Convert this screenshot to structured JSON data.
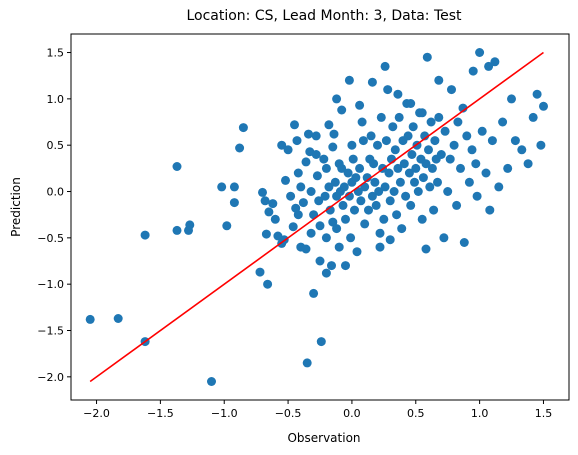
{
  "chart_data": {
    "type": "scatter",
    "title": "Location: CS, Lead Month: 3, Data: Test",
    "xlabel": "Observation",
    "ylabel": "Prediction",
    "xlim": [
      -2.2,
      1.7
    ],
    "ylim": [
      -2.25,
      1.7
    ],
    "xticks": [
      -2.0,
      -1.5,
      -1.0,
      -0.5,
      0.0,
      0.5,
      1.0,
      1.5
    ],
    "yticks": [
      -2.0,
      -1.5,
      -1.0,
      -0.5,
      0.0,
      0.5,
      1.0,
      1.5
    ],
    "xtick_labels": [
      "−2.0",
      "−1.5",
      "−1.0",
      "−0.5",
      "0.0",
      "0.5",
      "1.0",
      "1.5"
    ],
    "ytick_labels": [
      "−2.0",
      "−1.5",
      "−1.0",
      "−0.5",
      "0.0",
      "0.5",
      "1.0",
      "1.5"
    ],
    "grid": false,
    "point_color": "#1f77b4",
    "line_color": "#ff0000",
    "fit_line": [
      [
        -2.05,
        -2.05
      ],
      [
        1.5,
        1.5
      ]
    ],
    "points": [
      [
        -2.05,
        -1.38
      ],
      [
        -1.83,
        -1.37
      ],
      [
        -1.62,
        -1.62
      ],
      [
        -1.62,
        -0.47
      ],
      [
        -1.37,
        0.27
      ],
      [
        -1.37,
        -0.42
      ],
      [
        -1.28,
        -0.42
      ],
      [
        -1.27,
        -0.36
      ],
      [
        -1.1,
        -2.05
      ],
      [
        -1.02,
        0.05
      ],
      [
        -0.98,
        -0.37
      ],
      [
        -0.92,
        0.05
      ],
      [
        -0.92,
        -0.12
      ],
      [
        -0.88,
        0.47
      ],
      [
        -0.85,
        0.69
      ],
      [
        -0.72,
        -0.87
      ],
      [
        -0.7,
        -0.01
      ],
      [
        -0.68,
        -0.1
      ],
      [
        -0.67,
        -0.46
      ],
      [
        -0.66,
        -1.0
      ],
      [
        -0.65,
        -0.22
      ],
      [
        -0.62,
        -0.13
      ],
      [
        -0.58,
        -0.48
      ],
      [
        -0.55,
        0.5
      ],
      [
        -0.55,
        -0.56
      ],
      [
        -0.53,
        -0.52
      ],
      [
        -0.5,
        0.45
      ],
      [
        -0.48,
        -0.05
      ],
      [
        -0.46,
        -0.38
      ],
      [
        -0.45,
        0.72
      ],
      [
        -0.43,
        0.55
      ],
      [
        -0.42,
        0.2
      ],
      [
        -0.42,
        -0.25
      ],
      [
        -0.4,
        0.05
      ],
      [
        -0.4,
        -0.6
      ],
      [
        -0.38,
        -0.12
      ],
      [
        -0.36,
        0.32
      ],
      [
        -0.35,
        -1.85
      ],
      [
        -0.34,
        0.62
      ],
      [
        -0.33,
        0.43
      ],
      [
        -0.32,
        0.0
      ],
      [
        -0.32,
        -0.45
      ],
      [
        -0.3,
        -1.1
      ],
      [
        -0.3,
        -0.25
      ],
      [
        -0.28,
        0.6
      ],
      [
        -0.27,
        0.17
      ],
      [
        -0.26,
        -0.1
      ],
      [
        -0.25,
        -0.37
      ],
      [
        -0.25,
        -0.75
      ],
      [
        -0.24,
        -1.62
      ],
      [
        -0.22,
        0.35
      ],
      [
        -0.21,
        -0.05
      ],
      [
        -0.2,
        0.25
      ],
      [
        -0.2,
        -0.5
      ],
      [
        -0.18,
        0.05
      ],
      [
        -0.17,
        -0.2
      ],
      [
        -0.16,
        -0.8
      ],
      [
        -0.15,
        0.48
      ],
      [
        -0.15,
        -0.33
      ],
      [
        -0.14,
        0.62
      ],
      [
        -0.13,
        0.1
      ],
      [
        -0.12,
        -0.05
      ],
      [
        -0.12,
        -0.4
      ],
      [
        -0.1,
        0.3
      ],
      [
        -0.1,
        -0.6
      ],
      [
        -0.09,
        0.0
      ],
      [
        -0.08,
        0.25
      ],
      [
        -0.07,
        -0.15
      ],
      [
        -0.06,
        0.05
      ],
      [
        -0.05,
        -0.3
      ],
      [
        -0.05,
        -0.8
      ],
      [
        -0.03,
        0.2
      ],
      [
        -0.02,
        -0.05
      ],
      [
        -0.01,
        -0.5
      ],
      [
        0.0,
        0.5
      ],
      [
        0.0,
        0.1
      ],
      [
        0.01,
        0.35
      ],
      [
        0.02,
        -0.2
      ],
      [
        0.03,
        0.15
      ],
      [
        0.04,
        -0.65
      ],
      [
        0.05,
        0.0
      ],
      [
        0.06,
        0.25
      ],
      [
        0.07,
        -0.1
      ],
      [
        0.08,
        0.75
      ],
      [
        0.09,
        0.55
      ],
      [
        0.1,
        0.05
      ],
      [
        0.1,
        -0.35
      ],
      [
        0.12,
        0.15
      ],
      [
        0.13,
        -0.2
      ],
      [
        0.14,
        0.35
      ],
      [
        0.15,
        0.6
      ],
      [
        0.16,
        -0.05
      ],
      [
        0.17,
        0.3
      ],
      [
        0.18,
        0.1
      ],
      [
        0.19,
        -0.15
      ],
      [
        0.2,
        0.5
      ],
      [
        0.21,
        0.0
      ],
      [
        0.22,
        -0.45
      ],
      [
        0.23,
        0.8
      ],
      [
        0.24,
        0.25
      ],
      [
        0.25,
        -0.3
      ],
      [
        0.26,
        0.05
      ],
      [
        0.27,
        0.55
      ],
      [
        0.28,
        1.1
      ],
      [
        0.29,
        0.2
      ],
      [
        0.3,
        -0.1
      ],
      [
        0.31,
        0.35
      ],
      [
        0.32,
        0.7
      ],
      [
        0.33,
        0.0
      ],
      [
        0.34,
        0.45
      ],
      [
        0.35,
        -0.25
      ],
      [
        0.36,
        0.25
      ],
      [
        0.37,
        0.8
      ],
      [
        0.38,
        0.1
      ],
      [
        0.39,
        -0.4
      ],
      [
        0.4,
        0.55
      ],
      [
        0.41,
        0.3
      ],
      [
        0.42,
        -0.05
      ],
      [
        0.43,
        0.95
      ],
      [
        0.44,
        0.6
      ],
      [
        0.45,
        0.2
      ],
      [
        0.46,
        -0.15
      ],
      [
        0.47,
        0.4
      ],
      [
        0.48,
        0.7
      ],
      [
        0.49,
        0.1
      ],
      [
        0.5,
        0.25
      ],
      [
        0.51,
        0.5
      ],
      [
        0.52,
        0.0
      ],
      [
        0.53,
        0.85
      ],
      [
        0.54,
        0.35
      ],
      [
        0.55,
        -0.3
      ],
      [
        0.56,
        0.15
      ],
      [
        0.57,
        0.6
      ],
      [
        0.58,
        0.3
      ],
      [
        0.59,
        1.45
      ],
      [
        0.6,
        0.45
      ],
      [
        0.61,
        0.05
      ],
      [
        0.62,
        0.75
      ],
      [
        0.63,
        0.25
      ],
      [
        0.64,
        -0.2
      ],
      [
        0.65,
        0.55
      ],
      [
        0.66,
        0.35
      ],
      [
        0.67,
        0.1
      ],
      [
        0.68,
        0.8
      ],
      [
        0.7,
        0.4
      ],
      [
        0.72,
        -0.5
      ],
      [
        0.73,
        0.65
      ],
      [
        0.75,
        0.0
      ],
      [
        0.77,
        0.35
      ],
      [
        0.78,
        1.1
      ],
      [
        0.8,
        0.5
      ],
      [
        0.82,
        -0.15
      ],
      [
        0.83,
        0.75
      ],
      [
        0.85,
        0.25
      ],
      [
        0.87,
        0.9
      ],
      [
        0.88,
        -0.55
      ],
      [
        0.9,
        0.6
      ],
      [
        0.92,
        0.1
      ],
      [
        0.94,
        0.45
      ],
      [
        0.95,
        1.3
      ],
      [
        0.97,
        0.3
      ],
      [
        0.98,
        -0.05
      ],
      [
        1.0,
        1.5
      ],
      [
        1.02,
        0.65
      ],
      [
        1.05,
        0.2
      ],
      [
        1.07,
        1.35
      ],
      [
        1.08,
        -0.2
      ],
      [
        1.1,
        0.55
      ],
      [
        1.12,
        1.4
      ],
      [
        1.15,
        0.05
      ],
      [
        1.18,
        0.75
      ],
      [
        1.22,
        0.25
      ],
      [
        1.25,
        1.0
      ],
      [
        1.28,
        0.55
      ],
      [
        1.33,
        0.45
      ],
      [
        1.38,
        0.3
      ],
      [
        1.42,
        0.8
      ],
      [
        1.45,
        1.05
      ],
      [
        1.48,
        0.5
      ],
      [
        1.5,
        0.92
      ],
      [
        -0.6,
        -0.3
      ],
      [
        -0.52,
        0.12
      ],
      [
        -0.44,
        -0.18
      ],
      [
        -0.36,
        -0.62
      ],
      [
        -0.28,
        0.4
      ],
      [
        -0.18,
        0.72
      ],
      [
        -0.08,
        0.88
      ],
      [
        0.06,
        0.93
      ],
      [
        0.16,
        1.18
      ],
      [
        0.26,
        1.35
      ],
      [
        0.36,
        1.05
      ],
      [
        -0.02,
        1.2
      ],
      [
        -0.12,
        1.0
      ],
      [
        0.46,
        0.95
      ],
      [
        0.55,
        0.85
      ],
      [
        0.68,
        1.2
      ],
      [
        0.22,
        -0.6
      ],
      [
        0.3,
        -0.52
      ],
      [
        -0.2,
        -0.88
      ],
      [
        0.58,
        -0.62
      ]
    ]
  }
}
